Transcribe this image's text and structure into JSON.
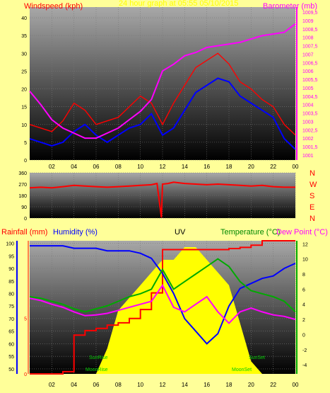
{
  "colors": {
    "background": "#ffff99",
    "wind_speed": "#ff0000",
    "wind_gust_avg": "#0000ff",
    "barometer": "#ff00ff",
    "direction": "#ff0000",
    "rainfall": "#ff0000",
    "humidity": "#0000ff",
    "uv": "#ffff00",
    "temperature": "#00aa00",
    "dew_point": "#ff00ff"
  },
  "x_ticks": [
    "02",
    "04",
    "06",
    "08",
    "10",
    "12",
    "14",
    "16",
    "18",
    "20",
    "22",
    "00"
  ],
  "chart_data": [
    {
      "type": "line",
      "title": "24 hour graph at 05:55 05/10/2015",
      "left_axis_label": "Windspeed (kph)",
      "right_axis_label": "Barometer (mb)",
      "left_ticks": [
        "0",
        "5",
        "10",
        "15",
        "20",
        "25",
        "30",
        "35",
        "40"
      ],
      "right_ticks": [
        "1001",
        "1001,5",
        "1002",
        "1002,5",
        "1003",
        "1003,5",
        "1004",
        "1004,5",
        "1005",
        "1005,5",
        "1006",
        "1006,5",
        "1007",
        "1007,5",
        "1008",
        "1008,5",
        "1009",
        "1009,5"
      ],
      "ylim_left": [
        0,
        43
      ],
      "ylim_right": [
        1000.7,
        1009.8
      ],
      "x": [
        0,
        1,
        2,
        3,
        4,
        5,
        6,
        7,
        8,
        9,
        10,
        11,
        12,
        13,
        14,
        15,
        16,
        17,
        18,
        19,
        20,
        21,
        22,
        23,
        24
      ],
      "series": [
        {
          "values": [
            10,
            9,
            8,
            11,
            16,
            14,
            10,
            11,
            12,
            15,
            18,
            16,
            10,
            16,
            21,
            26,
            28,
            30,
            27,
            22,
            20,
            17,
            15,
            10,
            7
          ]
        },
        {
          "values": [
            6,
            5,
            4,
            5,
            8,
            10,
            7,
            5,
            7,
            9,
            10,
            13,
            7,
            9,
            14,
            19,
            21,
            23,
            22,
            18,
            16,
            14,
            12,
            6,
            3
          ]
        },
        {
          "values": [
            1004.8,
            1004.0,
            1003.1,
            1002.6,
            1002.3,
            1002.0,
            1002.0,
            1002.3,
            1002.6,
            1003.1,
            1003.6,
            1004.3,
            1006.0,
            1006.4,
            1006.9,
            1007.1,
            1007.4,
            1007.5,
            1007.6,
            1007.7,
            1007.9,
            1008.1,
            1008.2,
            1008.3,
            1008.8
          ]
        }
      ]
    },
    {
      "type": "line",
      "left_ticks": [
        "0",
        "90",
        "180",
        "270",
        "360"
      ],
      "right_ticks": [
        "N",
        "W",
        "S",
        "E",
        "N"
      ],
      "ylim": [
        0,
        360
      ],
      "x": [
        0,
        1,
        2,
        3,
        4,
        5,
        6,
        7,
        8,
        9,
        10,
        11,
        11.5,
        11.9,
        12,
        12.5,
        13,
        14,
        15,
        16,
        17,
        18,
        19,
        20,
        21,
        22,
        23,
        24
      ],
      "series": [
        {
          "values": [
            240,
            245,
            240,
            250,
            260,
            255,
            250,
            245,
            250,
            255,
            260,
            265,
            275,
            5,
            270,
            275,
            285,
            275,
            270,
            265,
            270,
            265,
            260,
            255,
            260,
            250,
            245,
            245
          ]
        }
      ]
    },
    {
      "type": "line",
      "rain_label": "Rainfall (mm)",
      "humidity_label": "Humidity (%)",
      "uv_label": "UV",
      "temperature_label": "Temperature (°C)",
      "dew_label": "Dew Point (°C)",
      "humidity_ticks": [
        "50",
        "55",
        "60",
        "65",
        "70",
        "75",
        "80",
        "85",
        "90",
        "95",
        "100"
      ],
      "rain_ticks": [
        "0",
        "5"
      ],
      "temp_ticks": [
        "-4",
        "-2",
        "0",
        "2",
        "4",
        "6",
        "8",
        "10",
        "12"
      ],
      "ylim_humidity": [
        48,
        101
      ],
      "ylim_rain": [
        0,
        12
      ],
      "ylim_temp": [
        -5.2,
        12.4
      ],
      "annotations": [
        "SunRise",
        "MoonRise",
        "SunSet",
        "MoonSet"
      ],
      "x": [
        0,
        1,
        2,
        3,
        4,
        5,
        6,
        7,
        8,
        9,
        10,
        11,
        12,
        13,
        14,
        15,
        16,
        17,
        18,
        19,
        20,
        21,
        22,
        23,
        24
      ],
      "series": [
        {
          "values": [
            0,
            0,
            0,
            0.2,
            3.5,
            3.9,
            4.1,
            4.4,
            4.6,
            5.0,
            5.8,
            7.3,
            11.2,
            11.2,
            11.2,
            11.2,
            11.2,
            11.2,
            11.3,
            11.4,
            11.6,
            12,
            12,
            12,
            12
          ]
        },
        {
          "values": [
            99,
            99,
            99,
            99,
            98,
            98,
            98,
            97,
            97,
            97,
            96,
            94,
            88,
            80,
            70,
            65,
            60,
            64,
            75,
            82,
            84,
            86,
            87,
            90,
            92
          ]
        },
        {
          "values": [
            0,
            0,
            0,
            0,
            0,
            0,
            0,
            2,
            5,
            6,
            7,
            8,
            9,
            9,
            10,
            10,
            9,
            8,
            7,
            4,
            1,
            0,
            0,
            0,
            0
          ]
        },
        {
          "values": [
            5.0,
            4.8,
            4.4,
            4.0,
            3.4,
            3.0,
            3.4,
            3.8,
            4.4,
            5.0,
            5.4,
            6.0,
            8.6,
            6.0,
            7.0,
            8.0,
            9.0,
            10.0,
            9.0,
            7.0,
            5.8,
            5.4,
            5.0,
            4.4,
            3.0
          ]
        },
        {
          "values": [
            4.8,
            4.5,
            4.0,
            3.6,
            3.0,
            2.5,
            2.6,
            2.8,
            3.2,
            3.6,
            4.0,
            4.4,
            6.5,
            3.6,
            3.0,
            4.0,
            5.0,
            3.0,
            1.5,
            3.0,
            3.5,
            3.0,
            2.6,
            2.4,
            2.0
          ]
        }
      ]
    }
  ]
}
